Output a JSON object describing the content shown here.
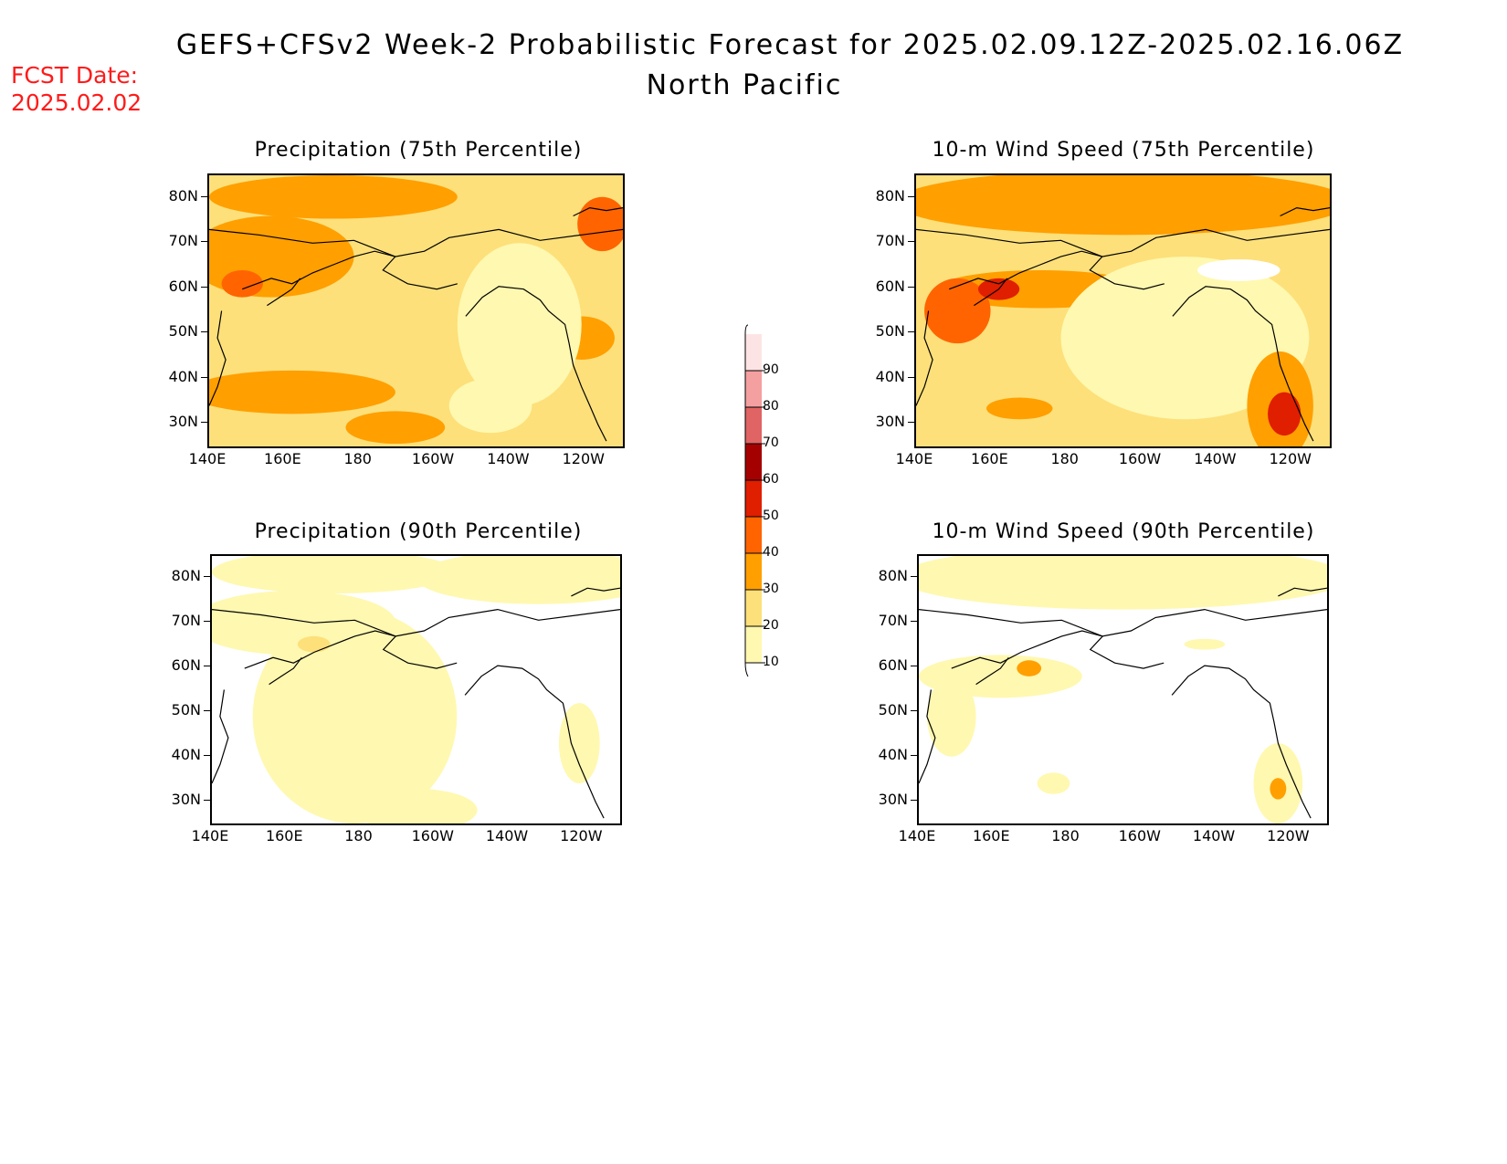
{
  "header": {
    "title": "GEFS+CFSv2 Week-2 Probabilistic Forecast for 2025.02.09.12Z-2025.02.16.06Z",
    "subtitle": "North Pacific",
    "fcst_label": "FCST Date:",
    "fcst_date": "2025.02.02"
  },
  "axes": {
    "lat_ticks": [
      "80N",
      "70N",
      "60N",
      "50N",
      "40N",
      "30N"
    ],
    "lon_ticks": [
      "140E",
      "160E",
      "180",
      "160W",
      "140W",
      "120W"
    ],
    "lat_range": [
      25,
      85
    ],
    "lon_range": [
      140,
      250
    ]
  },
  "panels": [
    {
      "id": "precip75",
      "title": "Precipitation (75th Percentile)"
    },
    {
      "id": "wind75",
      "title": "10-m Wind Speed (75th Percentile)"
    },
    {
      "id": "precip90",
      "title": "Precipitation (90th Percentile)"
    },
    {
      "id": "wind90",
      "title": "10-m Wind Speed (90th Percentile)"
    }
  ],
  "colorbar": {
    "levels": [
      "10",
      "20",
      "30",
      "40",
      "50",
      "60",
      "70",
      "80",
      "90"
    ],
    "colors": [
      "#fff8b0",
      "#fde07a",
      "#ff9f00",
      "#ff6400",
      "#e01e00",
      "#a40000",
      "#e06464",
      "#f5a0a0",
      "#fde4e4"
    ]
  }
}
